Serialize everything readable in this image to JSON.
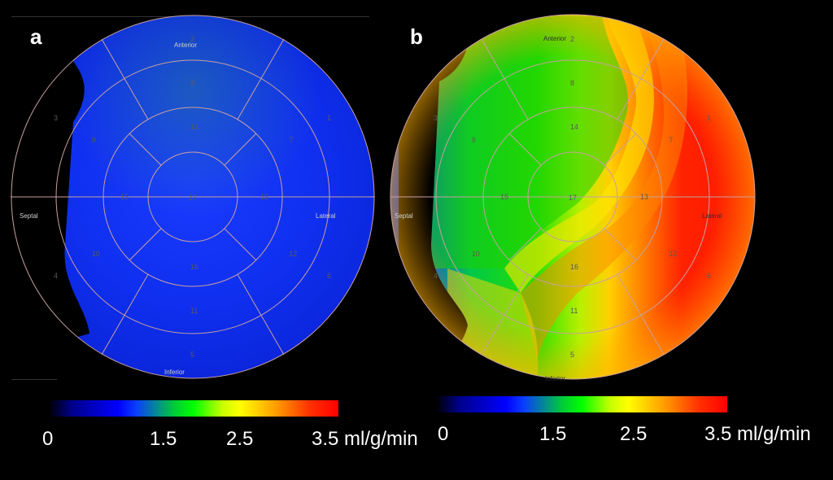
{
  "panels": [
    {
      "letter": "a",
      "wall_labels": {
        "anterior": "Anterior",
        "inferior": "Inferior",
        "septal": "Septal",
        "lateral": "Lateral"
      },
      "colorbar": {
        "ticks": [
          "0",
          "1.5",
          "2.5",
          "3.5 ml/g/min"
        ]
      }
    },
    {
      "letter": "b",
      "wall_labels": {
        "anterior": "Anterior",
        "inferior": "Inferior",
        "septal": "Septal",
        "lateral": "Lateral"
      },
      "colorbar": {
        "ticks": [
          "0",
          "1.5",
          "2.5",
          "3.5 ml/g/min"
        ]
      }
    }
  ],
  "colors": {
    "low": "#0000ff",
    "mid": "#00ff00",
    "high": "#ff0000",
    "grid": "#c8a0a0"
  }
}
